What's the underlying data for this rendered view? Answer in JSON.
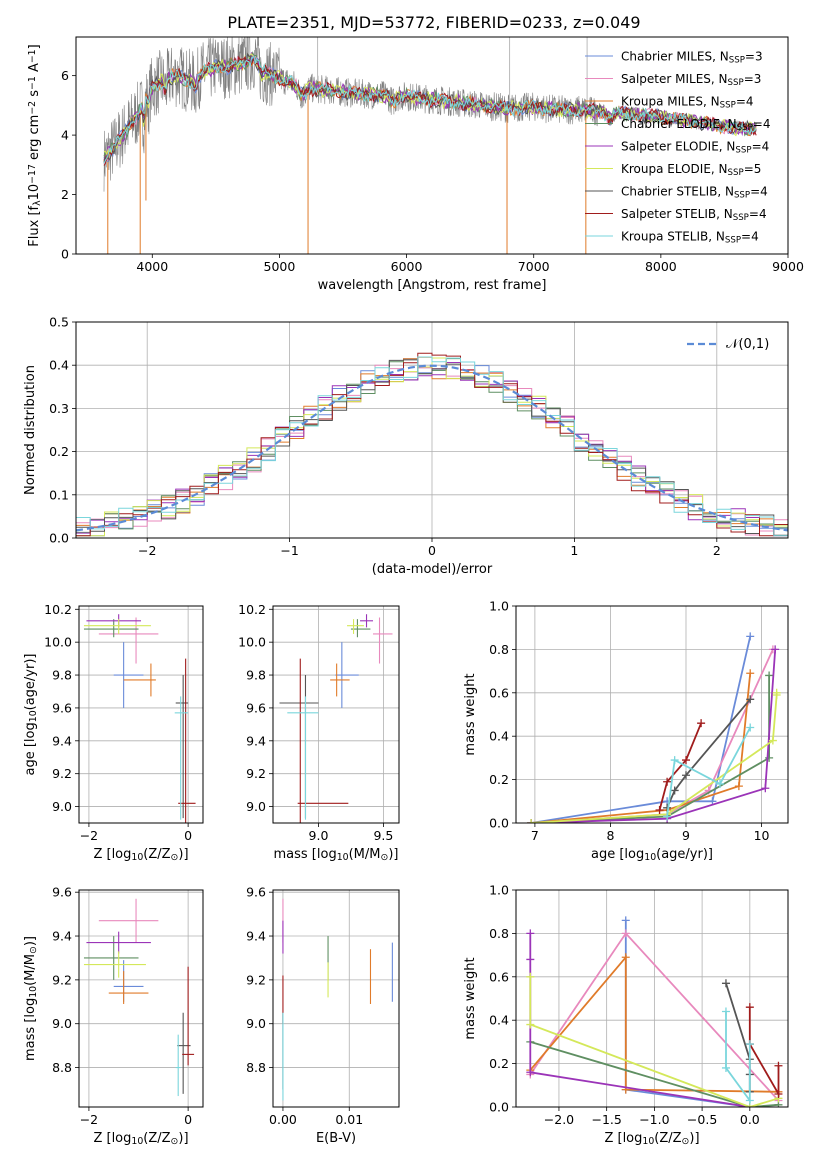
{
  "title": "PLATE=2351, MJD=53772, FIBERID=0233, z=0.049",
  "colors": {
    "Chabrier MILES": "#6a8bd9",
    "Salpeter MILES": "#e889bd",
    "Kroupa MILES": "#e07b2a",
    "Chabrier ELODIE": "#5f8f62",
    "Salpeter ELODIE": "#9b34b8",
    "Kroupa ELODIE": "#d4e85a",
    "Chabrier STELIB": "#555555",
    "Salpeter STELIB": "#a01c1c",
    "Kroupa STELIB": "#7ad6dc",
    "data": "#808080",
    "normal": "#5b8bd6"
  },
  "chart_data": [
    {
      "id": "spectrum",
      "type": "line",
      "title": "PLATE=2351, MJD=53772, FIBERID=0233, z=0.049",
      "xlabel": "wavelength [Angstrom, rest frame]",
      "ylabel": "Flux [f$_\\lambda$10$^{-17}$ erg cm$^{-2}$ s$^{-1}$ A$^{-1}$]",
      "xlim": [
        3400,
        9000
      ],
      "ylim": [
        0,
        7.3
      ],
      "xticks": [
        "4000",
        "5000",
        "6000",
        "7000",
        "8000",
        "9000"
      ],
      "yticks": [
        "0",
        "2",
        "4",
        "6"
      ],
      "legend_position": "upper-right",
      "continuum": {
        "x": [
          3620,
          3700,
          3800,
          3900,
          4000,
          4100,
          4200,
          4300,
          4400,
          4500,
          4600,
          4700,
          4800,
          4900,
          5000,
          5200,
          5400,
          5600,
          5800,
          6000,
          6200,
          6400,
          6600,
          6800,
          7000,
          7200,
          7400,
          7600,
          7800,
          8000,
          8200,
          8400,
          8600,
          8750
        ],
        "y": [
          3.2,
          3.6,
          4.2,
          4.8,
          5.6,
          5.9,
          6.0,
          5.8,
          6.1,
          6.3,
          6.3,
          6.4,
          6.6,
          6.1,
          5.9,
          5.6,
          5.5,
          5.4,
          5.35,
          5.3,
          5.2,
          5.1,
          5.0,
          4.9,
          4.95,
          4.85,
          4.85,
          4.75,
          4.7,
          4.6,
          4.5,
          4.35,
          4.25,
          4.2
        ]
      },
      "series": [
        {
          "name": "Chabrier MILES, N$_{SSP}$=3"
        },
        {
          "name": "Salpeter MILES, N$_{SSP}$=3"
        },
        {
          "name": "Kroupa MILES, N$_{SSP}$=4"
        },
        {
          "name": "Chabrier ELODIE, N$_{SSP}$=4"
        },
        {
          "name": "Salpeter ELODIE, N$_{SSP}$=4"
        },
        {
          "name": "Kroupa ELODIE, N$_{SSP}$=5"
        },
        {
          "name": "Chabrier STELIB, N$_{SSP}$=4"
        },
        {
          "name": "Salpeter STELIB, N$_{SSP}$=4"
        },
        {
          "name": "Kroupa STELIB, N$_{SSP}$=4"
        }
      ]
    },
    {
      "id": "residuals",
      "type": "histogram",
      "xlabel": "(data-model)/error",
      "ylabel": "Normed distribution",
      "xlim": [
        -2.5,
        2.5
      ],
      "ylim": [
        0,
        0.5
      ],
      "xticks": [
        "−2",
        "−1",
        "0",
        "1",
        "2"
      ],
      "yticks": [
        "0.0",
        "0.1",
        "0.2",
        "0.3",
        "0.4",
        "0.5"
      ],
      "grid": true,
      "legend": [
        "$\\mathcal{N}(0,1)$"
      ],
      "legend_position": "upper-right",
      "bin_width": 0.1,
      "reference_curve": "normal pdf, mean 0, sigma 1"
    },
    {
      "id": "age_vs_Z",
      "type": "scatter",
      "xlabel": "Z [log$_{10}$(Z/Z$_\\odot$)]",
      "ylabel": "age  [log$_{10}$(age/yr)]",
      "xlim": [
        -2.2,
        0.3
      ],
      "ylim": [
        8.9,
        10.22
      ],
      "xticks": [
        "−2",
        "0"
      ],
      "yticks": [
        "9.0",
        "9.2",
        "9.4",
        "9.6",
        "9.8",
        "10.0",
        "10.2"
      ],
      "grid": true,
      "points": [
        {
          "series": "Chabrier MILES",
          "x": -1.3,
          "y": 9.8,
          "xerr": [
            0.2,
            0.4
          ],
          "yerr": [
            0.2,
            0.2
          ]
        },
        {
          "series": "Salpeter MILES",
          "x": -1.05,
          "y": 10.05,
          "xerr": [
            0.75,
            0.45
          ],
          "yerr": [
            0.18,
            0.1
          ]
        },
        {
          "series": "Kroupa MILES",
          "x": -0.75,
          "y": 9.77,
          "xerr": [
            0.55,
            0.1
          ],
          "yerr": [
            0.1,
            0.1
          ]
        },
        {
          "series": "Chabrier ELODIE",
          "x": -1.5,
          "y": 10.08,
          "xerr": [
            0.6,
            0.5
          ],
          "yerr": [
            0.05,
            0.06
          ]
        },
        {
          "series": "Salpeter ELODIE",
          "x": -1.4,
          "y": 10.13,
          "xerr": [
            0.65,
            0.45
          ],
          "yerr": [
            0.04,
            0.04
          ]
        },
        {
          "series": "Kroupa ELODIE",
          "x": -1.4,
          "y": 10.1,
          "xerr": [
            0.7,
            0.65
          ],
          "yerr": [
            0.05,
            0.04
          ]
        },
        {
          "series": "Chabrier STELIB",
          "x": -0.1,
          "y": 9.63,
          "xerr": [
            0.15,
            0.1
          ],
          "yerr": [
            0.7,
            0.17
          ]
        },
        {
          "series": "Salpeter STELIB",
          "x": -0.05,
          "y": 9.02,
          "xerr": [
            0.15,
            0.2
          ],
          "yerr": [
            0.12,
            0.88
          ]
        },
        {
          "series": "Kroupa STELIB",
          "x": -0.15,
          "y": 9.57,
          "xerr": [
            0.12,
            0.15
          ],
          "yerr": [
            0.65,
            0.1
          ]
        }
      ]
    },
    {
      "id": "age_vs_mass",
      "type": "scatter",
      "xlabel": "mass [log$_{10}$(M/M$_\\odot$)]",
      "ylabel": "",
      "xlim": [
        8.65,
        9.62
      ],
      "ylim": [
        8.9,
        10.22
      ],
      "xticks": [
        "9.0",
        "9.5"
      ],
      "yticks": [
        "9.0",
        "9.2",
        "9.4",
        "9.6",
        "9.8",
        "10.0",
        "10.2"
      ],
      "grid": true,
      "points": [
        {
          "series": "Chabrier MILES",
          "x": 9.18,
          "y": 9.8,
          "xerr": [
            0.05,
            0.13
          ],
          "yerr": [
            0.2,
            0.2
          ]
        },
        {
          "series": "Salpeter MILES",
          "x": 9.47,
          "y": 10.05,
          "xerr": [
            0.05,
            0.1
          ],
          "yerr": [
            0.18,
            0.1
          ]
        },
        {
          "series": "Kroupa MILES",
          "x": 9.14,
          "y": 9.77,
          "xerr": [
            0.05,
            0.1
          ],
          "yerr": [
            0.1,
            0.1
          ]
        },
        {
          "series": "Chabrier ELODIE",
          "x": 9.3,
          "y": 10.08,
          "xerr": [
            0.05,
            0.1
          ],
          "yerr": [
            0.05,
            0.06
          ]
        },
        {
          "series": "Salpeter ELODIE",
          "x": 9.37,
          "y": 10.13,
          "xerr": [
            0.05,
            0.05
          ],
          "yerr": [
            0.04,
            0.04
          ]
        },
        {
          "series": "Kroupa ELODIE",
          "x": 9.27,
          "y": 10.1,
          "xerr": [
            0.05,
            0.08
          ],
          "yerr": [
            0.05,
            0.04
          ]
        },
        {
          "series": "Chabrier STELIB",
          "x": 8.9,
          "y": 9.63,
          "xerr": [
            0.2,
            0.1
          ],
          "yerr": [
            0.7,
            0.17
          ]
        },
        {
          "series": "Salpeter STELIB",
          "x": 8.86,
          "y": 9.02,
          "xerr": [
            0.02,
            0.37
          ],
          "yerr": [
            0.12,
            0.88
          ]
        },
        {
          "series": "Kroupa STELIB",
          "x": 8.9,
          "y": 9.57,
          "xerr": [
            0.14,
            0.1
          ],
          "yerr": [
            0.65,
            0.1
          ]
        }
      ]
    },
    {
      "id": "weight_vs_age",
      "type": "line",
      "xlabel": "age  [log$_{10}$(age/yr)]",
      "ylabel": "mass weight",
      "xlim": [
        6.75,
        10.35
      ],
      "ylim": [
        0,
        1.0
      ],
      "xticks": [
        "7",
        "8",
        "9",
        "10"
      ],
      "yticks": [
        "0.0",
        "0.2",
        "0.4",
        "0.6",
        "0.8",
        "1.0"
      ],
      "grid": true,
      "series": [
        {
          "series": "Chabrier MILES",
          "x": [
            6.95,
            8.75,
            9.35,
            9.85
          ],
          "y": [
            0.0,
            0.1,
            0.1,
            0.86
          ]
        },
        {
          "series": "Salpeter MILES",
          "x": [
            6.95,
            8.75,
            9.3,
            10.15
          ],
          "y": [
            0.0,
            0.04,
            0.15,
            0.8
          ]
        },
        {
          "series": "Kroupa MILES",
          "x": [
            6.95,
            8.75,
            9.7,
            9.85
          ],
          "y": [
            0.0,
            0.06,
            0.17,
            0.69
          ]
        },
        {
          "series": "Chabrier ELODIE",
          "x": [
            6.95,
            8.75,
            10.1,
            10.1
          ],
          "y": [
            0.0,
            0.03,
            0.3,
            0.68
          ]
        },
        {
          "series": "Salpeter ELODIE",
          "x": [
            6.95,
            8.75,
            10.05,
            10.18
          ],
          "y": [
            0.0,
            0.02,
            0.16,
            0.8
          ]
        },
        {
          "series": "Kroupa ELODIE",
          "x": [
            6.95,
            8.75,
            10.15,
            10.2,
            10.2
          ],
          "y": [
            0.0,
            0.04,
            0.38,
            0.59,
            0.6
          ]
        },
        {
          "series": "Chabrier STELIB",
          "x": [
            8.75,
            8.85,
            9.0,
            9.85
          ],
          "y": [
            0.07,
            0.15,
            0.22,
            0.57
          ]
        },
        {
          "series": "Salpeter STELIB",
          "x": [
            8.65,
            8.75,
            9.0,
            9.2
          ],
          "y": [
            0.06,
            0.19,
            0.29,
            0.46
          ]
        },
        {
          "series": "Kroupa STELIB",
          "x": [
            8.75,
            8.85,
            9.45,
            9.85
          ],
          "y": [
            0.03,
            0.29,
            0.18,
            0.44
          ]
        }
      ]
    },
    {
      "id": "mass_vs_Z",
      "type": "scatter",
      "xlabel": "Z [log$_{10}$(Z/Z$_\\odot$)]",
      "ylabel": "mass [log$_{10}$(M/M$_\\odot$)]",
      "xlim": [
        -2.2,
        0.3
      ],
      "ylim": [
        8.62,
        9.61
      ],
      "xticks": [
        "−2",
        "0"
      ],
      "yticks": [
        "8.8",
        "9.0",
        "9.2",
        "9.4",
        "9.6"
      ],
      "grid": true,
      "points": [
        {
          "series": "Chabrier MILES",
          "x": -1.3,
          "y": 9.17,
          "xerr": [
            0.2,
            0.4
          ],
          "yerr": [
            0.07,
            0.12
          ]
        },
        {
          "series": "Salpeter MILES",
          "x": -1.05,
          "y": 9.47,
          "xerr": [
            0.75,
            0.45
          ],
          "yerr": [
            0.1,
            0.1
          ]
        },
        {
          "series": "Kroupa MILES",
          "x": -1.3,
          "y": 9.14,
          "xerr": [
            0.3,
            0.5
          ],
          "yerr": [
            0.05,
            0.1
          ]
        },
        {
          "series": "Chabrier ELODIE",
          "x": -1.5,
          "y": 9.3,
          "xerr": [
            0.6,
            0.5
          ],
          "yerr": [
            0.1,
            0.1
          ]
        },
        {
          "series": "Salpeter ELODIE",
          "x": -1.4,
          "y": 9.37,
          "xerr": [
            0.65,
            0.65
          ],
          "yerr": [
            0.05,
            0.05
          ]
        },
        {
          "series": "Kroupa ELODIE",
          "x": -1.4,
          "y": 9.27,
          "xerr": [
            0.7,
            0.55
          ],
          "yerr": [
            0.06,
            0.06
          ]
        },
        {
          "series": "Chabrier STELIB",
          "x": -0.1,
          "y": 8.9,
          "xerr": [
            0.12,
            0.15
          ],
          "yerr": [
            0.22,
            0.15
          ]
        },
        {
          "series": "Salpeter STELIB",
          "x": 0.0,
          "y": 8.86,
          "xerr": [
            0.12,
            0.12
          ],
          "yerr": [
            0.05,
            0.4
          ]
        },
        {
          "series": "Kroupa STELIB",
          "x": -0.2,
          "y": 8.8,
          "xerr": [
            0.05,
            0.05
          ],
          "yerr": [
            0.13,
            0.15
          ]
        }
      ]
    },
    {
      "id": "mass_vs_ebv",
      "type": "scatter",
      "xlabel": "E(B-V)",
      "ylabel": "",
      "xlim": [
        -0.0015,
        0.0175
      ],
      "ylim": [
        8.62,
        9.61
      ],
      "xticks": [
        "0.00",
        "0.01"
      ],
      "yticks": [
        "8.8",
        "9.0",
        "9.2",
        "9.4",
        "9.6"
      ],
      "grid": true,
      "points": [
        {
          "series": "Chabrier MILES",
          "x": 0.0165,
          "y": 9.2,
          "xerr": [
            0,
            0
          ],
          "yerr": [
            0.1,
            0.17
          ]
        },
        {
          "series": "Salpeter MILES",
          "x": 0.0,
          "y": 9.47,
          "xerr": [
            0,
            0
          ],
          "yerr": [
            0.1,
            0.1
          ]
        },
        {
          "series": "Kroupa MILES",
          "x": 0.0132,
          "y": 9.14,
          "xerr": [
            0,
            0
          ],
          "yerr": [
            0.05,
            0.2
          ]
        },
        {
          "series": "Chabrier ELODIE",
          "x": 0.0068,
          "y": 9.3,
          "xerr": [
            0,
            0
          ],
          "yerr": [
            0.1,
            0.1
          ]
        },
        {
          "series": "Salpeter ELODIE",
          "x": 0.0,
          "y": 9.37,
          "xerr": [
            0,
            0
          ],
          "yerr": [
            0.05,
            0.1
          ]
        },
        {
          "series": "Kroupa ELODIE",
          "x": 0.0068,
          "y": 9.2,
          "xerr": [
            0.0001,
            0.0001
          ],
          "yerr": [
            0.08,
            0.08
          ]
        },
        {
          "series": "Chabrier STELIB",
          "x": 0.0,
          "y": 8.9,
          "xerr": [
            0,
            0
          ],
          "yerr": [
            0.2,
            0.15
          ]
        },
        {
          "series": "Salpeter STELIB",
          "x": 0.0,
          "y": 9.1,
          "xerr": [
            0,
            0
          ],
          "yerr": [
            0.1,
            0.12
          ]
        },
        {
          "series": "Kroupa STELIB",
          "x": 0.0,
          "y": 8.8,
          "xerr": [
            0,
            0
          ],
          "yerr": [
            0.15,
            0.25
          ]
        }
      ]
    },
    {
      "id": "weight_vs_Z",
      "type": "line",
      "xlabel": "Z [log$_{10}$(Z/Z$_\\odot$)]",
      "ylabel": "mass weight",
      "xlim": [
        -2.45,
        0.4
      ],
      "ylim": [
        0,
        1.0
      ],
      "xticks": [
        "−2.0",
        "−1.5",
        "−1.0",
        "−0.5",
        "0.0"
      ],
      "yticks": [
        "0.0",
        "0.2",
        "0.4",
        "0.6",
        "0.8",
        "1.0"
      ],
      "grid": true,
      "series": [
        {
          "series": "Chabrier MILES",
          "x": [
            -1.3,
            -1.3,
            0.0
          ],
          "y": [
            0.86,
            0.08,
            0.0
          ]
        },
        {
          "series": "Salpeter MILES",
          "x": [
            -2.3,
            -1.3,
            0.3
          ],
          "y": [
            0.15,
            0.8,
            0.03
          ]
        },
        {
          "series": "Kroupa MILES",
          "x": [
            -2.3,
            -1.3,
            -1.3,
            0.3
          ],
          "y": [
            0.17,
            0.69,
            0.08,
            0.07
          ]
        },
        {
          "series": "Chabrier ELODIE",
          "x": [
            -2.3,
            0.0,
            0.3
          ],
          "y": [
            0.3,
            0.0,
            0.01
          ]
        },
        {
          "series": "Salpeter ELODIE",
          "x": [
            -2.3,
            -2.3,
            -2.3,
            0.0
          ],
          "y": [
            0.8,
            0.68,
            0.16,
            0.0
          ]
        },
        {
          "series": "Kroupa ELODIE",
          "x": [
            -2.3,
            -2.3,
            0.0,
            0.3
          ],
          "y": [
            0.6,
            0.38,
            0.0,
            0.04
          ]
        },
        {
          "series": "Chabrier STELIB",
          "x": [
            -0.25,
            0.0,
            0.0,
            0.0
          ],
          "y": [
            0.57,
            0.22,
            0.15,
            0.07
          ]
        },
        {
          "series": "Salpeter STELIB",
          "x": [
            0.0,
            0.0,
            0.3,
            0.3
          ],
          "y": [
            0.46,
            0.29,
            0.06,
            0.19
          ]
        },
        {
          "series": "Kroupa STELIB",
          "x": [
            -0.25,
            -0.25,
            0.0,
            0.0
          ],
          "y": [
            0.44,
            0.18,
            0.03,
            0.29
          ]
        }
      ]
    }
  ]
}
